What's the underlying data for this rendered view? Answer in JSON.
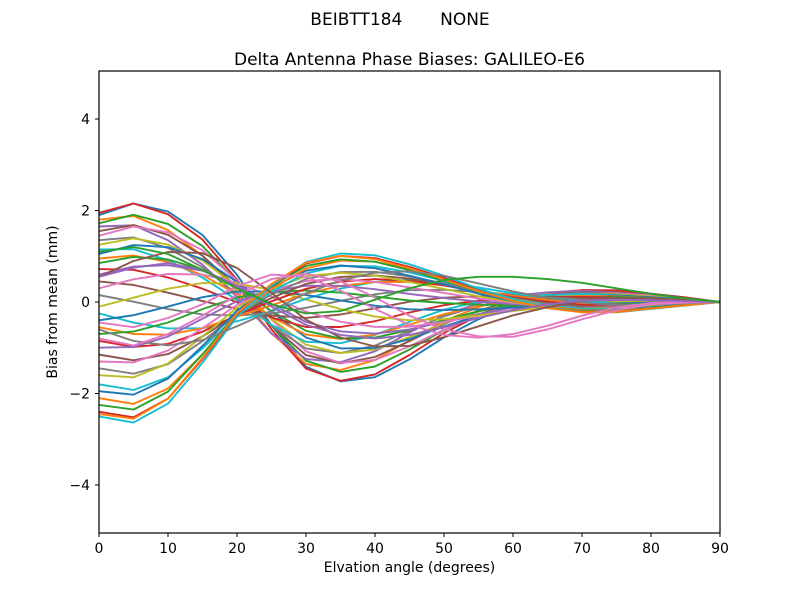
{
  "figure": {
    "suptitle": "BEIBTT184       NONE",
    "axes_title": "Delta Antenna Phase Biases: GALILEO-E6",
    "xlabel": "Elvation angle (degrees)",
    "ylabel": "Bias from mean (mm)",
    "background": "#ffffff",
    "frame_color": "#000000"
  },
  "chart_data": {
    "type": "line",
    "title": "Delta Antenna Phase Biases: GALILEO-E6",
    "suptitle": "BEIBTT184       NONE",
    "xlabel": "Elvation angle (degrees)",
    "ylabel": "Bias from mean (mm)",
    "xlim": [
      0,
      90
    ],
    "ylim": [
      -5.05,
      5.05
    ],
    "xticks": [
      0,
      10,
      20,
      30,
      40,
      50,
      60,
      70,
      80,
      90
    ],
    "yticks": [
      -4,
      -2,
      0,
      2,
      4
    ],
    "grid": false,
    "legend": false,
    "line_width": 1.9,
    "x": [
      0,
      5,
      10,
      15,
      20,
      25,
      30,
      35,
      40,
      45,
      50,
      55,
      60,
      65,
      70,
      75,
      80,
      85,
      90
    ],
    "envelope": {
      "comment_free": "upper/lower extent of the line bundle read from the pixels",
      "upper": [
        1.9,
        2.1,
        1.8,
        1.5,
        1.0,
        1.0,
        1.0,
        1.05,
        0.9,
        0.7,
        0.65,
        0.6,
        0.6,
        0.55,
        0.45,
        0.35,
        0.25,
        0.12,
        0.0
      ],
      "lower": [
        -2.5,
        -2.6,
        -2.2,
        -1.5,
        -1.2,
        -1.6,
        -1.85,
        -1.8,
        -1.5,
        -1.1,
        -0.85,
        -0.8,
        -0.75,
        -0.7,
        -0.4,
        -0.3,
        -0.2,
        -0.1,
        0.0
      ]
    },
    "palette": [
      "#1f77b4",
      "#ff7f0e",
      "#2ca02c",
      "#d62728",
      "#9467bd",
      "#8c564b",
      "#e377c2",
      "#7f7f7f",
      "#bcbd22",
      "#17becf"
    ],
    "basis": {
      "F1": [
        1.0,
        1.07,
        0.92,
        0.62,
        0.18,
        -0.35,
        -0.75,
        -0.85,
        -0.75,
        -0.52,
        -0.28,
        -0.1,
        0.03,
        0.1,
        0.14,
        0.13,
        0.09,
        0.05,
        0.0
      ],
      "F2": [
        1.0,
        1.05,
        0.88,
        0.52,
        0.12,
        -0.15,
        -0.35,
        -0.42,
        -0.4,
        -0.32,
        -0.22,
        -0.11,
        -0.02,
        0.05,
        0.09,
        0.09,
        0.06,
        0.03,
        0.0
      ],
      "G": [
        0.0,
        0.22,
        0.42,
        0.52,
        0.46,
        0.28,
        0.02,
        -0.22,
        -0.4,
        -0.48,
        -0.44,
        -0.34,
        -0.22,
        -0.12,
        -0.04,
        0.01,
        0.02,
        0.01,
        0.0
      ]
    },
    "series": [
      {
        "color": "#1f77b4",
        "family": "F1",
        "a": 1.9,
        "b": 0.55
      },
      {
        "color": "#ff7f0e",
        "family": "F1",
        "a": 1.8,
        "b": -0.2
      },
      {
        "color": "#2ca02c",
        "family": "F1",
        "a": 1.72,
        "b": 0.3
      },
      {
        "color": "#d62728",
        "family": "F1",
        "a": 1.95,
        "b": 0.3
      },
      {
        "color": "#9467bd",
        "family": "F1",
        "a": 1.65,
        "b": -0.4
      },
      {
        "color": "#8c564b",
        "family": "F1",
        "a": 1.55,
        "b": 0.1
      },
      {
        "color": "#e377c2",
        "family": "F1",
        "a": 1.45,
        "b": 0.45
      },
      {
        "color": "#7f7f7f",
        "family": "F1",
        "a": 1.35,
        "b": -0.15
      },
      {
        "color": "#bcbd22",
        "family": "F1",
        "a": 1.25,
        "b": 0.25
      },
      {
        "color": "#17becf",
        "family": "F1",
        "a": 1.15,
        "b": -0.35
      },
      {
        "color": "#1f77b4",
        "family": "F1",
        "a": 1.05,
        "b": 0.55
      },
      {
        "color": "#ff7f0e",
        "family": "F1",
        "a": 0.95,
        "b": 0.0
      },
      {
        "color": "#2ca02c",
        "family": "F1",
        "a": 0.85,
        "b": 0.35
      },
      {
        "color": "#d62728",
        "family": "F1",
        "a": 0.72,
        "b": -0.3
      },
      {
        "color": "#9467bd",
        "family": "F1",
        "a": 0.6,
        "b": 0.6
      },
      {
        "color": "#8c564b",
        "family": "F1",
        "a": 0.45,
        "b": -0.5
      },
      {
        "color": "#e377c2",
        "family": "F1",
        "a": 0.3,
        "b": 0.8
      },
      {
        "color": "#7f7f7f",
        "family": "F1",
        "a": 0.15,
        "b": -0.7
      },
      {
        "color": "#bcbd22",
        "family": "F2",
        "a": -0.1,
        "b": 0.9
      },
      {
        "color": "#17becf",
        "family": "F2",
        "a": -0.25,
        "b": -0.85
      },
      {
        "color": "#1f77b4",
        "family": "F2",
        "a": -0.4,
        "b": 0.6
      },
      {
        "color": "#ff7f0e",
        "family": "F2",
        "a": -0.55,
        "b": -0.55
      },
      {
        "color": "#2ca02c",
        "family": "F2",
        "a": -0.7,
        "b": 0.4
      },
      {
        "color": "#d62728",
        "family": "F2",
        "a": -0.85,
        "b": -0.4
      },
      {
        "color": "#9467bd",
        "family": "F2",
        "a": -1.0,
        "b": 0.3
      },
      {
        "color": "#8c564b",
        "family": "F2",
        "a": -1.15,
        "b": -0.3
      },
      {
        "color": "#e377c2",
        "family": "F2",
        "a": -1.3,
        "b": 0.2
      },
      {
        "color": "#7f7f7f",
        "family": "F2",
        "a": -1.45,
        "b": -0.2
      },
      {
        "color": "#bcbd22",
        "family": "F2",
        "a": -1.6,
        "b": 0.15
      },
      {
        "color": "#17becf",
        "family": "F2",
        "a": -1.8,
        "b": -0.15
      },
      {
        "color": "#1f77b4",
        "family": "F2",
        "a": -1.95,
        "b": 0.1
      },
      {
        "color": "#ff7f0e",
        "family": "F2",
        "a": -2.1,
        "b": -0.1
      },
      {
        "color": "#2ca02c",
        "family": "F2",
        "a": -2.25,
        "b": 0.05
      },
      {
        "color": "#d62728",
        "family": "F2",
        "a": -2.4,
        "b": 0.0
      },
      {
        "color": "#17becf",
        "family": "F2",
        "a": -2.5,
        "b": -0.05
      },
      {
        "color": "#ff7f0e",
        "family": "F2",
        "a": -2.45,
        "b": 0.1
      },
      {
        "color": "#8c564b",
        "family": "F1",
        "a": 0.55,
        "b": 1.4
      },
      {
        "color": "#7f7f7f",
        "family": "F2",
        "a": -0.6,
        "b": -1.0
      },
      {
        "color": "#e377c2",
        "values": [
          -0.45,
          -0.55,
          -0.35,
          -0.05,
          0.35,
          0.6,
          0.55,
          0.25,
          -0.15,
          -0.5,
          -0.72,
          -0.78,
          -0.7,
          -0.52,
          -0.3,
          -0.12,
          -0.02,
          0.0,
          0.0
        ]
      },
      {
        "color": "#e377c2",
        "values": [
          -0.8,
          -0.95,
          -0.7,
          -0.3,
          0.15,
          0.5,
          0.62,
          0.45,
          0.1,
          -0.3,
          -0.6,
          -0.75,
          -0.76,
          -0.6,
          -0.38,
          -0.18,
          -0.05,
          -0.01,
          0.0
        ]
      },
      {
        "color": "#9467bd",
        "values": [
          0.55,
          0.75,
          0.85,
          0.7,
          0.35,
          -0.1,
          -0.5,
          -0.72,
          -0.8,
          -0.72,
          -0.55,
          -0.35,
          -0.18,
          -0.05,
          0.03,
          0.05,
          0.04,
          0.02,
          0.0
        ]
      },
      {
        "color": "#2ca02c",
        "values": [
          1.1,
          1.2,
          1.05,
          0.7,
          0.3,
          -0.05,
          -0.25,
          -0.2,
          0.05,
          0.3,
          0.48,
          0.55,
          0.55,
          0.5,
          0.42,
          0.3,
          0.18,
          0.08,
          0.0
        ]
      }
    ]
  }
}
